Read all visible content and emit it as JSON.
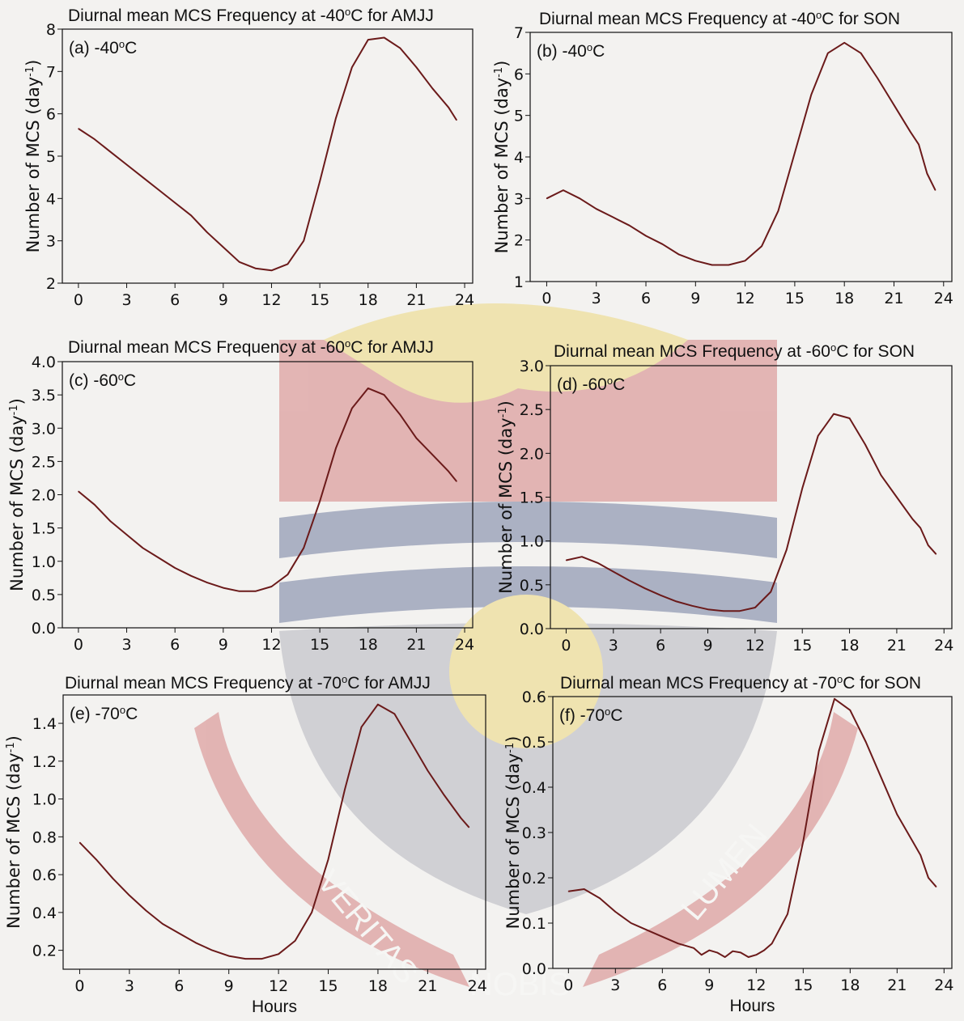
{
  "page": {
    "x_axis_label": "Hours",
    "y_axis_label": "Number of MCS (day",
    "y_axis_unit_sup": "-1",
    "y_axis_close": ")"
  },
  "watermark": {
    "left_text": "VERITAS",
    "right_text": "LUMEN",
    "bottom_text": "NOBIS",
    "colors": {
      "red": "#c23a3a",
      "gold": "#e8c531",
      "blue": "#1b2f6b"
    }
  },
  "line_color": "#6b1a1a",
  "chart_data": [
    {
      "type": "line",
      "title": "Diurnal mean MCS Frequency at -40°C for AMJJ",
      "panel_label": "(a) -40°C",
      "xlabel": "",
      "ylabel": "Number of MCS (day-1)",
      "xlim": [
        -1,
        24.5
      ],
      "ylim": [
        2,
        8
      ],
      "xticks": [
        0,
        3,
        6,
        9,
        12,
        15,
        18,
        21,
        24
      ],
      "yticks": [
        2,
        3,
        4,
        5,
        6,
        7,
        8
      ],
      "ytick_labels": [
        "2",
        "3",
        "4",
        "5",
        "6",
        "7",
        "8"
      ],
      "x": [
        0,
        1,
        2,
        3,
        4,
        5,
        6,
        7,
        8,
        9,
        10,
        11,
        12,
        13,
        14,
        15,
        16,
        17,
        18,
        19,
        20,
        21,
        22,
        23,
        23.5
      ],
      "y": [
        5.65,
        5.4,
        5.1,
        4.8,
        4.5,
        4.2,
        3.9,
        3.6,
        3.2,
        2.85,
        2.5,
        2.35,
        2.3,
        2.45,
        3.0,
        4.4,
        5.9,
        7.1,
        7.75,
        7.8,
        7.55,
        7.1,
        6.6,
        6.15,
        5.85
      ]
    },
    {
      "type": "line",
      "title": "Diurnal mean MCS Frequency at -40°C for SON",
      "panel_label": "(b) -40°C",
      "xlabel": "",
      "ylabel": "Number of MCS (day-1)",
      "xlim": [
        -1,
        24.5
      ],
      "ylim": [
        1,
        7
      ],
      "xticks": [
        0,
        3,
        6,
        9,
        12,
        15,
        18,
        21,
        24
      ],
      "yticks": [
        1,
        2,
        3,
        4,
        5,
        6,
        7
      ],
      "ytick_labels": [
        "1",
        "2",
        "3",
        "4",
        "5",
        "6",
        "7"
      ],
      "x": [
        0,
        1,
        2,
        3,
        4,
        5,
        6,
        7,
        8,
        9,
        10,
        11,
        12,
        13,
        14,
        15,
        16,
        17,
        18,
        19,
        20,
        21,
        22,
        22.5,
        23,
        23.5
      ],
      "y": [
        3.0,
        3.2,
        3.0,
        2.75,
        2.55,
        2.35,
        2.1,
        1.9,
        1.65,
        1.5,
        1.4,
        1.4,
        1.5,
        1.85,
        2.7,
        4.1,
        5.5,
        6.5,
        6.75,
        6.5,
        5.9,
        5.25,
        4.6,
        4.3,
        3.6,
        3.2
      ]
    },
    {
      "type": "line",
      "title": "Diurnal mean MCS Frequency at -60°C for AMJJ",
      "panel_label": "(c) -60°C",
      "xlabel": "",
      "ylabel": "Number of MCS (day-1)",
      "xlim": [
        -1,
        24.5
      ],
      "ylim": [
        0,
        4
      ],
      "xticks": [
        0,
        3,
        6,
        9,
        12,
        15,
        18,
        21,
        24
      ],
      "yticks": [
        0,
        0.5,
        1,
        1.5,
        2,
        2.5,
        3,
        3.5,
        4
      ],
      "ytick_labels": [
        "0.0",
        "0.5",
        "1.0",
        "1.5",
        "2.0",
        "2.5",
        "3.0",
        "3.5",
        "4.0"
      ],
      "x": [
        0,
        1,
        2,
        3,
        4,
        5,
        6,
        7,
        8,
        9,
        10,
        11,
        12,
        13,
        14,
        15,
        16,
        17,
        18,
        19,
        20,
        21,
        22,
        23,
        23.5
      ],
      "y": [
        2.05,
        1.85,
        1.6,
        1.4,
        1.2,
        1.05,
        0.9,
        0.78,
        0.68,
        0.6,
        0.55,
        0.55,
        0.62,
        0.8,
        1.2,
        1.9,
        2.7,
        3.3,
        3.6,
        3.5,
        3.2,
        2.85,
        2.6,
        2.35,
        2.2
      ]
    },
    {
      "type": "line",
      "title": "Diurnal mean MCS Frequency at -60°C for SON",
      "panel_label": "(d) -60°C",
      "xlabel": "",
      "ylabel": "Number of MCS (day-1)",
      "xlim": [
        -1,
        24.5
      ],
      "ylim": [
        0,
        3
      ],
      "xticks": [
        0,
        3,
        6,
        9,
        12,
        15,
        18,
        21,
        24
      ],
      "yticks": [
        0,
        0.5,
        1,
        1.5,
        2,
        2.5,
        3
      ],
      "ytick_labels": [
        "0.0",
        "0.5",
        "1.0",
        "1.5",
        "2.0",
        "2.5",
        "3.0"
      ],
      "x": [
        0,
        1,
        2,
        3,
        4,
        5,
        6,
        7,
        8,
        9,
        10,
        11,
        12,
        13,
        14,
        15,
        16,
        17,
        18,
        19,
        20,
        21,
        22,
        22.5,
        23,
        23.5
      ],
      "y": [
        0.78,
        0.82,
        0.75,
        0.65,
        0.55,
        0.46,
        0.38,
        0.31,
        0.26,
        0.22,
        0.2,
        0.2,
        0.24,
        0.42,
        0.9,
        1.6,
        2.2,
        2.45,
        2.4,
        2.1,
        1.75,
        1.5,
        1.25,
        1.15,
        0.95,
        0.85
      ]
    },
    {
      "type": "line",
      "title": "Diurnal mean MCS Frequency at -70°C for AMJJ",
      "panel_label": "(e) -70°C",
      "xlabel": "Hours",
      "ylabel": "Number of MCS (day-1)",
      "xlim": [
        -1,
        24.5
      ],
      "ylim": [
        0.1,
        1.55
      ],
      "xticks": [
        0,
        3,
        6,
        9,
        12,
        15,
        18,
        21,
        24
      ],
      "yticks": [
        0.2,
        0.4,
        0.6,
        0.8,
        1.0,
        1.2,
        1.4
      ],
      "ytick_labels": [
        "0.2",
        "0.4",
        "0.6",
        "0.8",
        "1.0",
        "1.2",
        "1.4"
      ],
      "x": [
        0,
        1,
        2,
        3,
        4,
        5,
        6,
        7,
        8,
        9,
        10,
        11,
        12,
        13,
        14,
        15,
        16,
        17,
        18,
        19,
        20,
        21,
        22,
        23,
        23.5
      ],
      "y": [
        0.77,
        0.68,
        0.58,
        0.49,
        0.41,
        0.34,
        0.29,
        0.24,
        0.2,
        0.17,
        0.155,
        0.155,
        0.18,
        0.25,
        0.4,
        0.68,
        1.05,
        1.38,
        1.5,
        1.45,
        1.3,
        1.15,
        1.02,
        0.9,
        0.85
      ]
    },
    {
      "type": "line",
      "title": "Diurnal mean MCS Frequency at -70°C for SON",
      "panel_label": "(f) -70°C",
      "xlabel": "Hours",
      "ylabel": "Number of MCS (day-1)",
      "xlim": [
        -1,
        24.5
      ],
      "ylim": [
        0,
        0.6
      ],
      "xticks": [
        0,
        3,
        6,
        9,
        12,
        15,
        18,
        21,
        24
      ],
      "yticks": [
        0,
        0.1,
        0.2,
        0.3,
        0.4,
        0.5,
        0.6
      ],
      "ytick_labels": [
        "0.0",
        "0.1",
        "0.2",
        "0.3",
        "0.4",
        "0.5",
        "0.6"
      ],
      "x": [
        0,
        1,
        2,
        3,
        4,
        5,
        6,
        7,
        8,
        8.5,
        9,
        9.5,
        10,
        10.5,
        11,
        11.5,
        12,
        12.5,
        13,
        14,
        15,
        16,
        17,
        18,
        19,
        20,
        21,
        22,
        22.5,
        23,
        23.5
      ],
      "y": [
        0.17,
        0.175,
        0.155,
        0.125,
        0.1,
        0.085,
        0.07,
        0.055,
        0.045,
        0.03,
        0.04,
        0.035,
        0.025,
        0.038,
        0.035,
        0.025,
        0.03,
        0.04,
        0.055,
        0.12,
        0.28,
        0.48,
        0.595,
        0.57,
        0.5,
        0.42,
        0.34,
        0.28,
        0.25,
        0.2,
        0.18
      ]
    }
  ]
}
